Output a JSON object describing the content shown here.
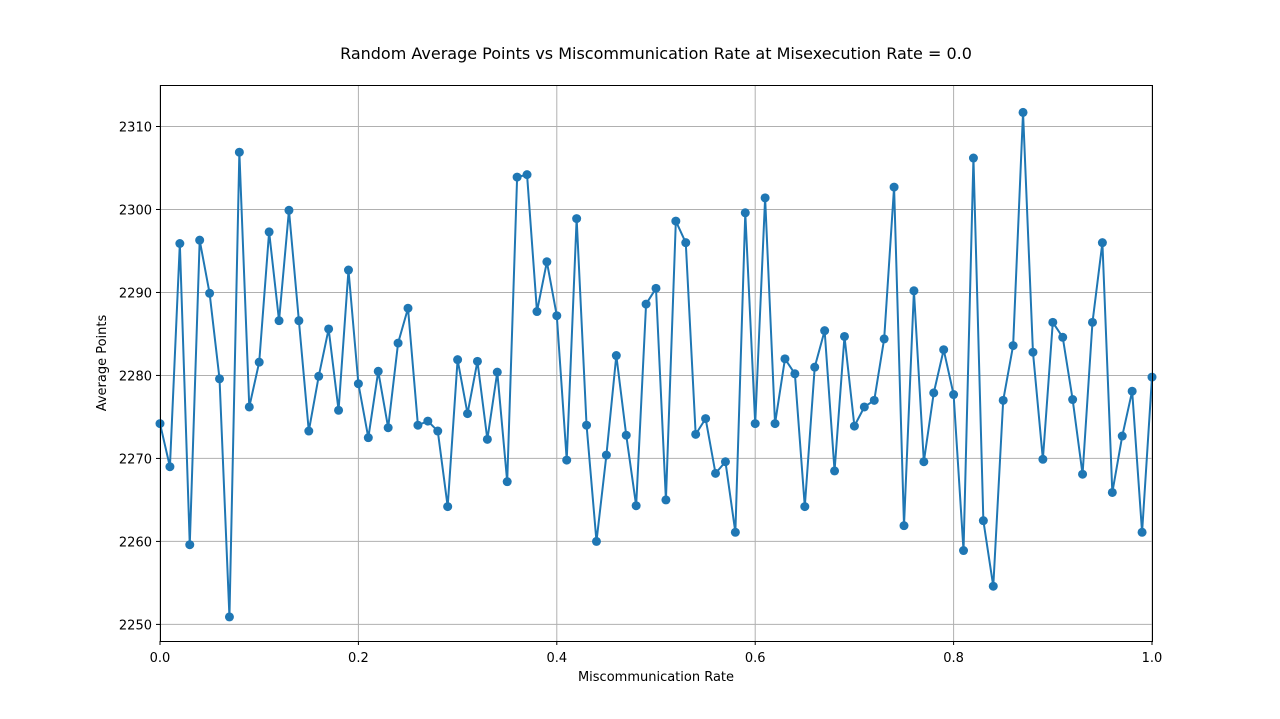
{
  "chart_data": {
    "type": "line",
    "title": "Random Average Points vs Miscommunication Rate at Misexecution Rate = 0.0",
    "xlabel": "Miscommunication Rate",
    "ylabel": "Average Points",
    "xlim": [
      0.0,
      1.0
    ],
    "ylim": [
      2248,
      2315
    ],
    "xticks": [
      "0.0",
      "0.2",
      "0.4",
      "0.6",
      "0.8",
      "1.0"
    ],
    "yticks": [
      "2250",
      "2260",
      "2270",
      "2280",
      "2290",
      "2300",
      "2310"
    ],
    "grid": true,
    "marker": "circle",
    "color": "#1f77b4",
    "x": [
      0.0,
      0.01,
      0.02,
      0.03,
      0.04,
      0.05,
      0.06,
      0.07,
      0.08,
      0.09,
      0.1,
      0.11,
      0.12,
      0.13,
      0.14,
      0.15,
      0.16,
      0.17,
      0.18,
      0.19,
      0.2,
      0.21,
      0.22,
      0.23,
      0.24,
      0.25,
      0.26,
      0.27,
      0.28,
      0.29,
      0.3,
      0.31,
      0.32,
      0.33,
      0.34,
      0.35,
      0.36,
      0.37,
      0.38,
      0.39,
      0.4,
      0.41,
      0.42,
      0.43,
      0.44,
      0.45,
      0.46,
      0.47,
      0.48,
      0.49,
      0.5,
      0.51,
      0.52,
      0.53,
      0.54,
      0.55,
      0.56,
      0.57,
      0.58,
      0.59,
      0.6,
      0.61,
      0.62,
      0.63,
      0.64,
      0.65,
      0.66,
      0.67,
      0.68,
      0.69,
      0.7,
      0.71,
      0.72,
      0.73,
      0.74,
      0.75,
      0.76,
      0.77,
      0.78,
      0.79,
      0.8,
      0.81,
      0.82,
      0.83,
      0.84,
      0.85,
      0.86,
      0.87,
      0.88,
      0.89,
      0.9,
      0.91,
      0.92,
      0.93,
      0.94,
      0.95,
      0.96,
      0.97,
      0.98,
      0.99,
      1.0
    ],
    "y": [
      2274.2,
      2269.0,
      2295.9,
      2259.6,
      2296.3,
      2289.9,
      2279.6,
      2250.9,
      2306.9,
      2276.2,
      2281.6,
      2297.3,
      2286.6,
      2299.9,
      2286.6,
      2273.3,
      2279.9,
      2285.6,
      2275.8,
      2292.7,
      2279.0,
      2272.5,
      2280.5,
      2273.7,
      2283.9,
      2288.1,
      2274.0,
      2274.5,
      2273.3,
      2264.2,
      2281.9,
      2275.4,
      2281.7,
      2272.3,
      2280.4,
      2267.2,
      2303.9,
      2304.2,
      2287.7,
      2293.7,
      2287.2,
      2269.8,
      2298.9,
      2274.0,
      2260.0,
      2270.4,
      2282.4,
      2272.8,
      2264.3,
      2288.6,
      2290.5,
      2265.0,
      2298.6,
      2296.0,
      2272.9,
      2274.8,
      2268.2,
      2269.6,
      2261.1,
      2299.6,
      2274.2,
      2301.4,
      2274.2,
      2282.0,
      2280.2,
      2264.2,
      2281.0,
      2285.4,
      2268.5,
      2284.7,
      2273.9,
      2276.2,
      2277.0,
      2284.4,
      2302.7,
      2261.9,
      2290.2,
      2269.6,
      2277.9,
      2283.1,
      2277.7,
      2258.9,
      2306.2,
      2262.5,
      2254.6,
      2277.0,
      2283.6,
      2311.7,
      2282.8,
      2269.9,
      2286.4,
      2284.6,
      2277.1,
      2268.1,
      2286.4,
      2296.0,
      2265.9,
      2272.7,
      2278.1,
      2261.1,
      2279.8
    ]
  }
}
